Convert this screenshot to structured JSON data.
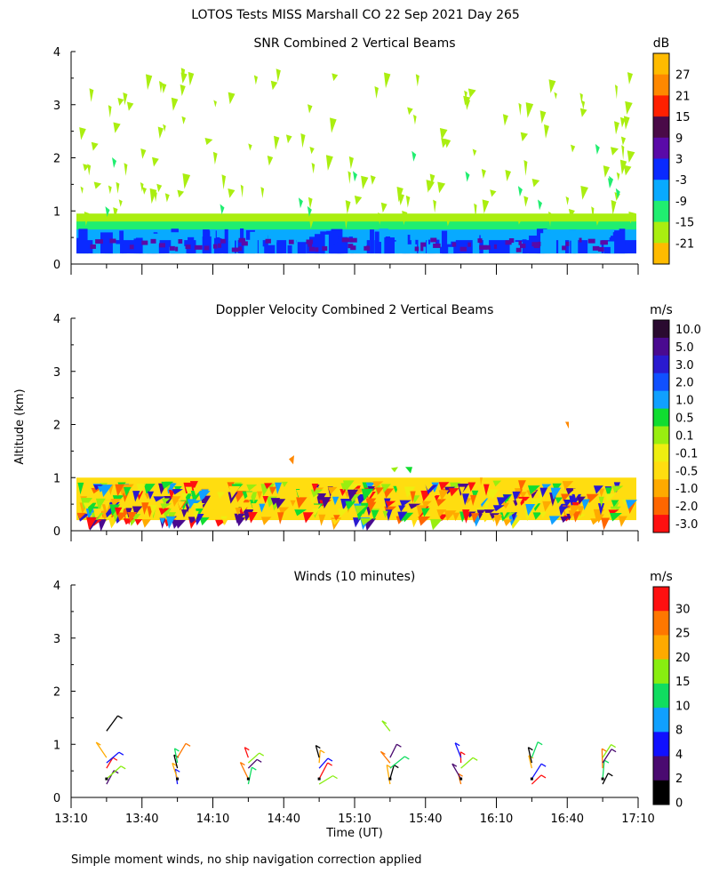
{
  "figure": {
    "title": "LOTOS Tests MISS Marshall CO  22 Sep 2021 Day 265",
    "ylabel": "Altitude (km)",
    "xlabel": "Time (UT)",
    "footnote": "Simple moment winds, no ship navigation correction applied",
    "yticks": [
      "0",
      "1",
      "2",
      "3",
      "4"
    ],
    "xticks": [
      "13:10",
      "13:40",
      "14:10",
      "14:40",
      "15:10",
      "15:40",
      "16:10",
      "16:40",
      "17:10"
    ]
  },
  "chart_data": [
    {
      "type": "heatmap",
      "title": "SNR Combined 2 Vertical Beams",
      "ylabel": "Altitude (km)",
      "ylim": [
        0,
        4
      ],
      "colorbar": {
        "unit": "dB",
        "labels": [
          "27",
          "21",
          "15",
          "9",
          "3",
          "-3",
          "-9",
          "-15",
          "-21"
        ],
        "colors": [
          "#ffbb00",
          "#ff8800",
          "#ff2000",
          "#4a0a48",
          "#5a0aa8",
          "#0a2aff",
          "#08aaff",
          "#20ee70",
          "#aaee10",
          "#ffbb00"
        ]
      },
      "description_values": {
        "boundary_layer_top_km": [
          0.7,
          1.0
        ],
        "main_signal_range_km": [
          0.2,
          0.6
        ]
      }
    },
    {
      "type": "heatmap",
      "title": "Doppler Velocity Combined 2 Vertical Beams",
      "ylabel": "Altitude (km)",
      "ylim": [
        0,
        4
      ],
      "colorbar": {
        "unit": "m/s",
        "labels": [
          "10.0",
          "5.0",
          "3.0",
          "2.0",
          "1.0",
          "0.5",
          "0.1",
          "-0.1",
          "-0.5",
          "-1.0",
          "-2.0",
          "-3.0"
        ],
        "colors": [
          "#2a0a30",
          "#4a0a90",
          "#2a1ad0",
          "#1050ff",
          "#10a0ff",
          "#10dd30",
          "#99ee10",
          "#eeee10",
          "#ffdd10",
          "#ffaa00",
          "#ff6600",
          "#ff1010"
        ]
      },
      "description_values": {
        "data_range_km": [
          0.2,
          1.0
        ]
      }
    },
    {
      "type": "scatter",
      "title": "Winds (10 minutes)",
      "ylabel": "Altitude (km)",
      "ylim": [
        0,
        4
      ],
      "colorbar": {
        "unit": "m/s",
        "labels": [
          "30",
          "25",
          "20",
          "15",
          "10",
          "8",
          "4",
          "2",
          "0"
        ],
        "colors": [
          "#ff1010",
          "#ff7700",
          "#ffaa00",
          "#88ee10",
          "#10dd60",
          "#10a0ff",
          "#1010ff",
          "#4a0a70",
          "#000000"
        ]
      },
      "profile_times": [
        "13:25",
        "13:55",
        "14:25",
        "14:55",
        "15:25",
        "15:55",
        "16:25",
        "16:55"
      ],
      "altitudes_km": [
        0.25,
        0.35,
        0.55,
        0.65,
        0.75,
        1.25
      ]
    }
  ]
}
